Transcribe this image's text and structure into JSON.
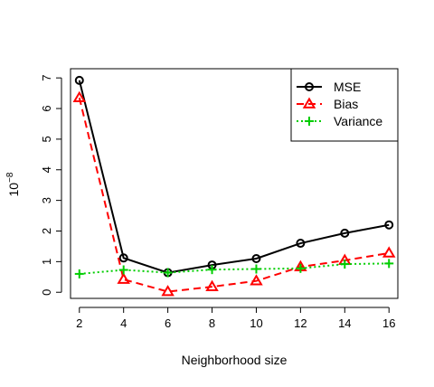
{
  "chart_data": {
    "type": "line",
    "title": "",
    "xlabel": "Neighborhood size",
    "ylabel_base": "10",
    "ylabel_exp": "−8",
    "x": [
      2,
      4,
      6,
      8,
      10,
      12,
      14,
      16
    ],
    "xlim": [
      1.6,
      16.4
    ],
    "ylim": [
      -0.2,
      7.3
    ],
    "xticks": [
      2,
      4,
      6,
      8,
      10,
      12,
      14,
      16
    ],
    "yticks": [
      0,
      1,
      2,
      3,
      4,
      5,
      6,
      7
    ],
    "legend_position": "top-right",
    "series": [
      {
        "name": "MSE",
        "color": "#000000",
        "dash": "solid",
        "marker": "circle",
        "values": [
          6.92,
          1.12,
          0.64,
          0.89,
          1.1,
          1.6,
          1.93,
          2.2
        ]
      },
      {
        "name": "Bias",
        "color": "#ff0000",
        "dash": "dashed",
        "marker": "triangle",
        "values": [
          6.35,
          0.42,
          0.02,
          0.18,
          0.37,
          0.83,
          1.04,
          1.28
        ]
      },
      {
        "name": "Variance",
        "color": "#00cd00",
        "dash": "dotted",
        "marker": "plus",
        "values": [
          0.6,
          0.73,
          0.64,
          0.74,
          0.76,
          0.78,
          0.92,
          0.94
        ]
      }
    ]
  }
}
